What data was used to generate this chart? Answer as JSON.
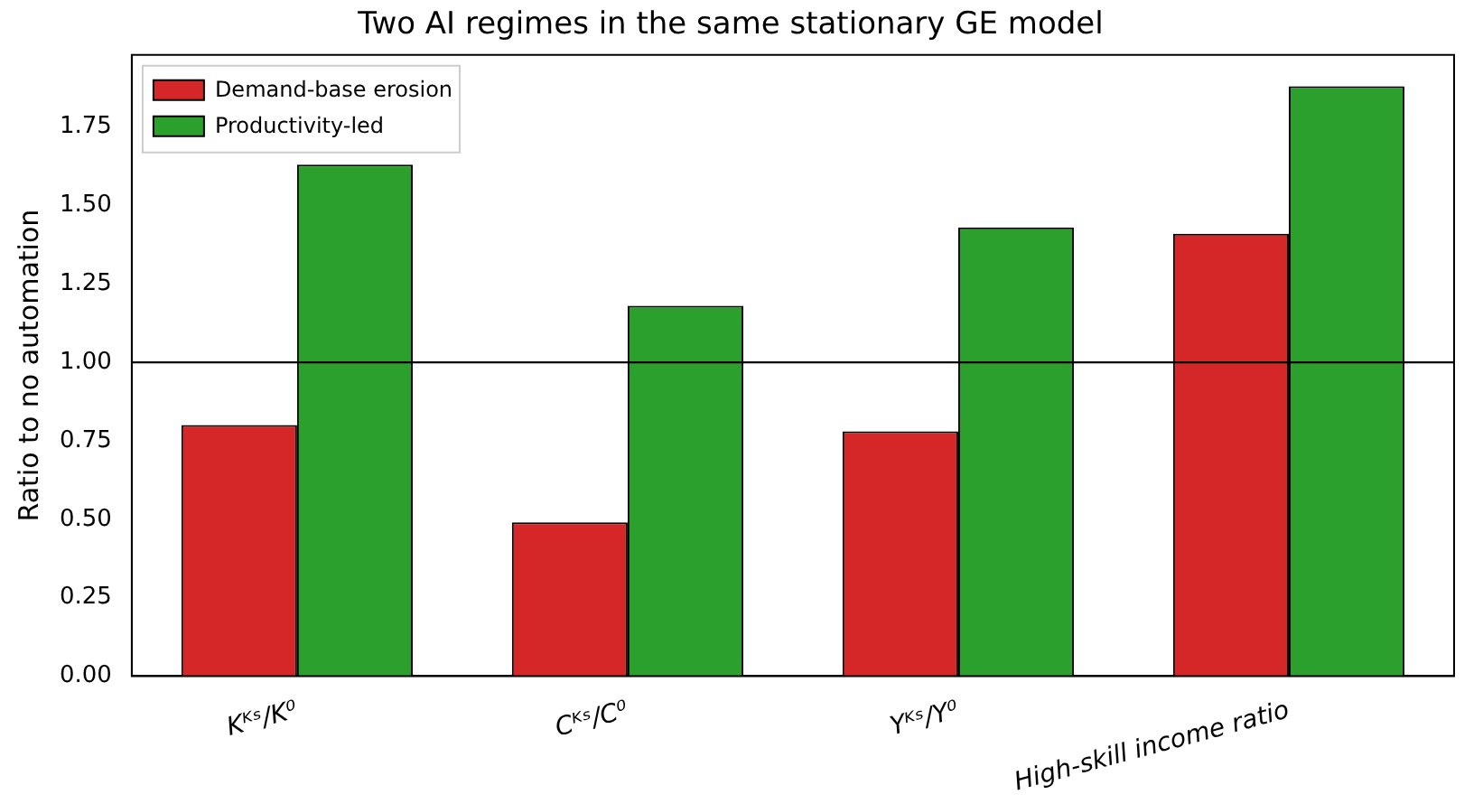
{
  "chart_data": {
    "type": "bar",
    "title": "Two AI regimes in the same stationary GE model",
    "ylabel": "Ratio to no automation",
    "categories": [
      "Kᴷˢ/K⁰",
      "Cᴷˢ/C⁰",
      "Yᴷˢ/Y⁰",
      "High-skill income ratio"
    ],
    "series": [
      {
        "name": "Demand-base erosion",
        "color": "#d62728",
        "values": [
          0.8,
          0.49,
          0.78,
          1.41
        ]
      },
      {
        "name": "Productivity-led",
        "color": "#2ca02c",
        "values": [
          1.63,
          1.18,
          1.43,
          1.88
        ]
      }
    ],
    "ylim": [
      0,
      1.98
    ],
    "yticks": [
      {
        "value": 0,
        "label": "0.00"
      },
      0.25,
      {
        "value": 0.5,
        "label": "0.50"
      },
      0.75,
      {
        "value": 1,
        "label": "1.00"
      },
      1.25,
      {
        "value": 1.5,
        "label": "1.50"
      },
      1.75
    ],
    "ref_lines": [
      {
        "axis": "y",
        "value": 1,
        "color": "#000000"
      }
    ],
    "grid": false,
    "legend": "top left"
  }
}
